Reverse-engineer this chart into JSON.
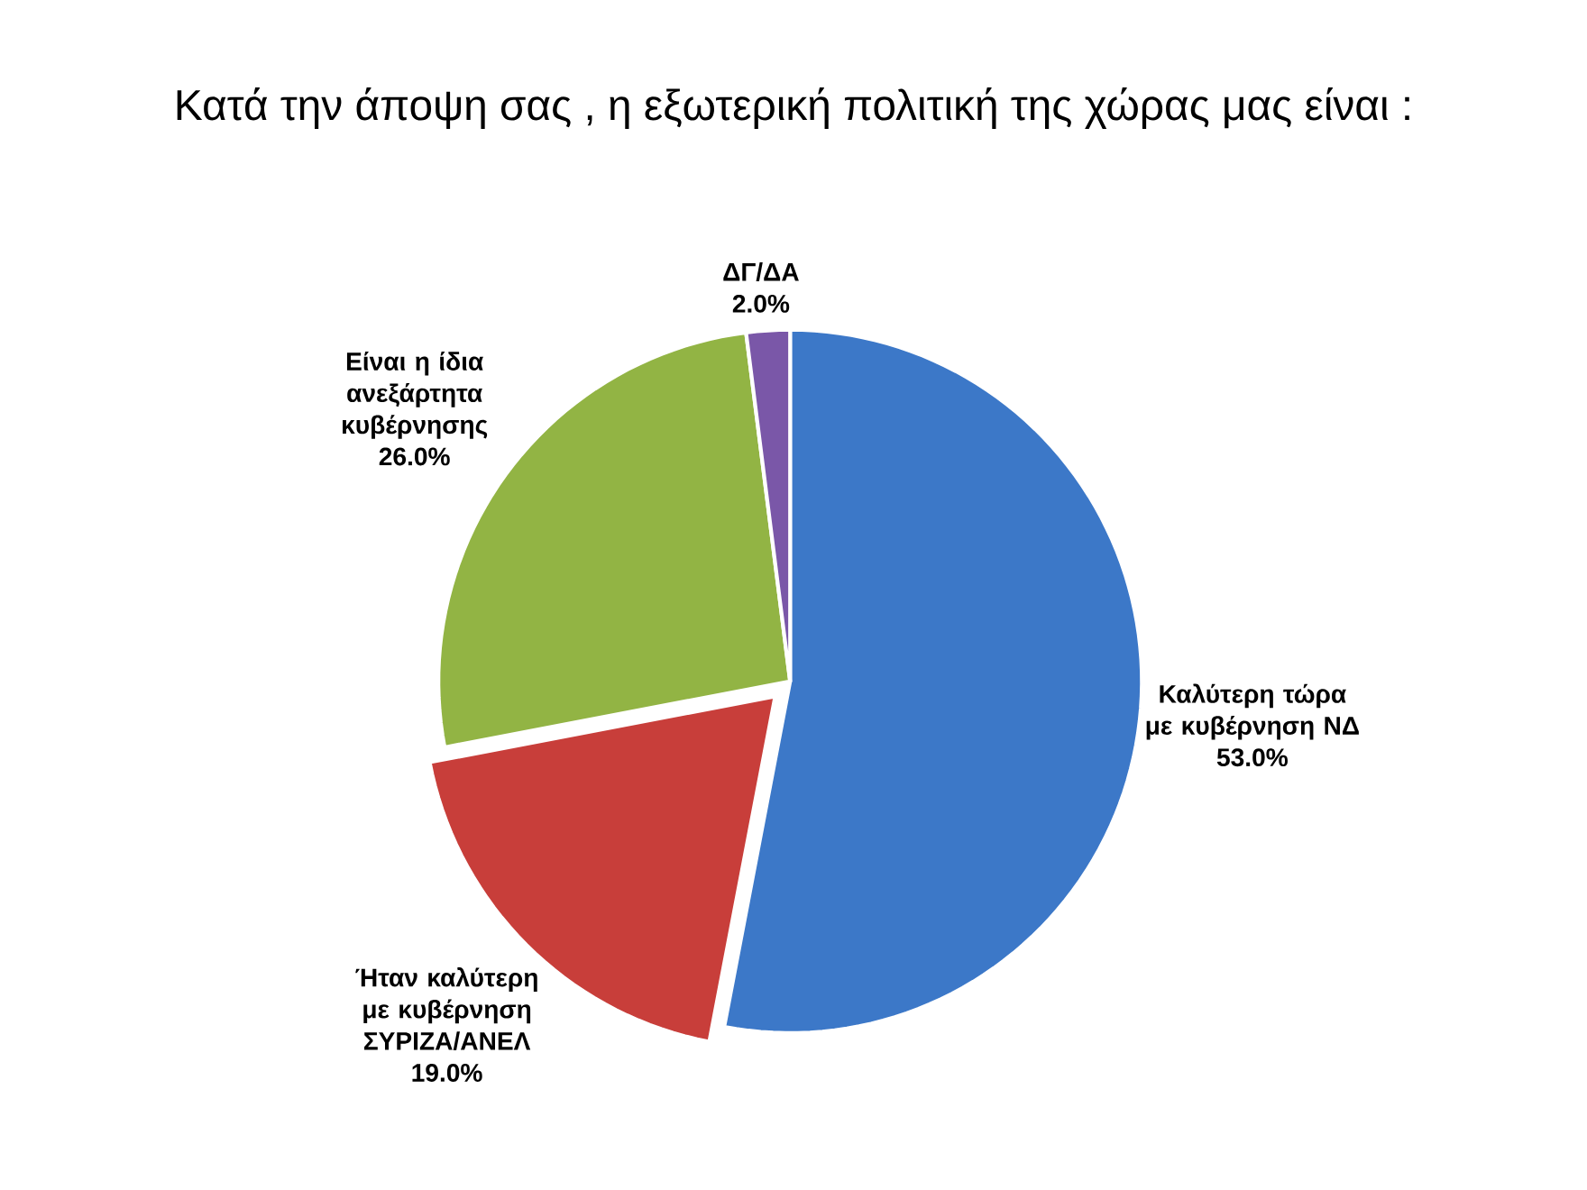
{
  "chart_data": {
    "type": "pie",
    "title": "Κατά την άποψη σας , η εξωτερική πολιτική της χώρας μας είναι :",
    "categories": [
      "Καλύτερη τώρα με κυβέρνηση ΝΔ",
      "Ήταν καλύτερη με κυβέρνηση ΣΥΡΙΖΑ/ΑΝΕΛ",
      "Είναι η ίδια ανεξάρτητα κυβέρνησης",
      "ΔΓ/ΔΑ"
    ],
    "values": [
      53,
      19,
      26,
      2
    ],
    "colors": [
      "#3c78c8",
      "#c83e3a",
      "#92b444",
      "#7a57a8"
    ],
    "value_labels": [
      "53.0%",
      "19.0%",
      "26.0%",
      "2.0%"
    ]
  }
}
